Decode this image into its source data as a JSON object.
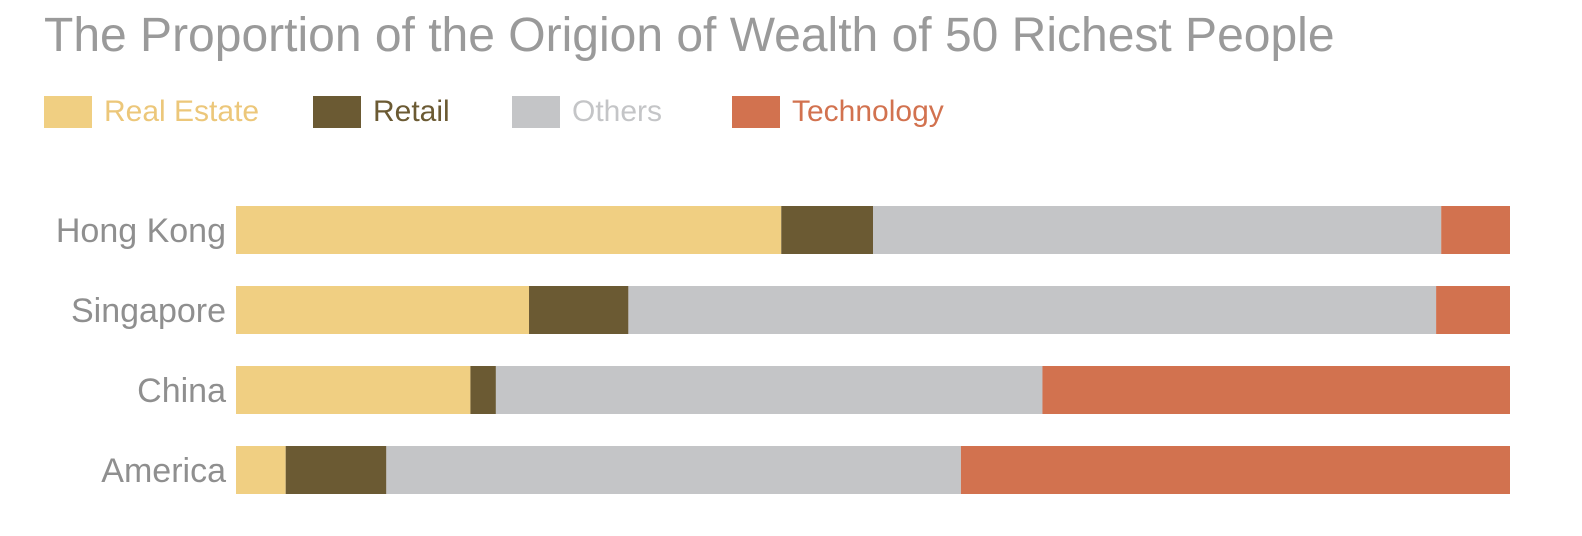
{
  "title": "The Proportion of the Origion of Wealth of 50 Richest People",
  "legend": [
    {
      "label": "Real Estate",
      "color": "#f0cf82",
      "text_color": "#ecc77a"
    },
    {
      "label": "Retail",
      "color": "#6b5a33",
      "text_color": "#6b5a33"
    },
    {
      "label": "Others",
      "color": "#c4c5c7",
      "text_color": "#c4c5c7"
    },
    {
      "label": "Technology",
      "color": "#d2724f",
      "text_color": "#d2724f"
    }
  ],
  "chart_data": {
    "type": "bar",
    "orientation": "horizontal",
    "stacked": true,
    "normalized": true,
    "title": "The Proportion of the Origion of Wealth of 50 Richest People",
    "categories": [
      "Hong Kong",
      "Singapore",
      "China",
      "America"
    ],
    "series": [
      {
        "name": "Real Estate",
        "color": "#f0cf82",
        "values": [
          42.8,
          23.0,
          18.4,
          3.9
        ]
      },
      {
        "name": "Retail",
        "color": "#6b5a33",
        "values": [
          7.2,
          7.8,
          2.0,
          7.9
        ]
      },
      {
        "name": "Others",
        "color": "#c4c5c7",
        "values": [
          44.6,
          63.4,
          42.9,
          45.1
        ]
      },
      {
        "name": "Technology",
        "color": "#d2724f",
        "values": [
          5.4,
          5.8,
          36.7,
          43.1
        ]
      }
    ],
    "xlim": [
      0,
      100
    ],
    "axis_visible": false,
    "grid": false,
    "legend_position": "top-left"
  }
}
